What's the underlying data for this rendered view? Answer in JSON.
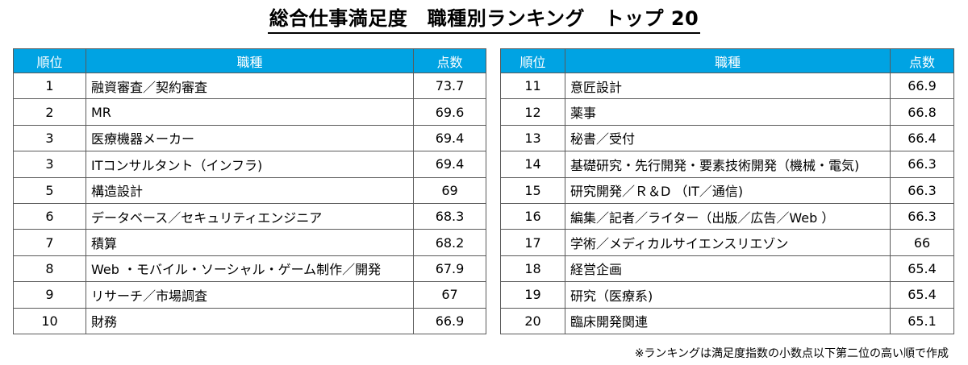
{
  "title": "総合仕事満足度　職種別ランキング　トップ 20",
  "headers": {
    "rank": "順位",
    "job": "職種",
    "score": "点数"
  },
  "left_rows": [
    {
      "rank": "1",
      "job": "融資審査／契約審査",
      "score": "73.7"
    },
    {
      "rank": "2",
      "job": "MR",
      "score": "69.6"
    },
    {
      "rank": "3",
      "job": "医療機器メーカー",
      "score": "69.4"
    },
    {
      "rank": "3",
      "job": "ITコンサルタント（インフラ)",
      "score": "69.4"
    },
    {
      "rank": "5",
      "job": "構造設計",
      "score": "69"
    },
    {
      "rank": "6",
      "job": "データベース／セキュリティエンジニア",
      "score": "68.3"
    },
    {
      "rank": "7",
      "job": "積算",
      "score": "68.2"
    },
    {
      "rank": "8",
      "job": "Web ・モバイル・ソーシャル・ゲーム制作／開発",
      "score": "67.9"
    },
    {
      "rank": "9",
      "job": "リサーチ／市場調査",
      "score": "67"
    },
    {
      "rank": "10",
      "job": "財務",
      "score": "66.9"
    }
  ],
  "right_rows": [
    {
      "rank": "11",
      "job": "意匠設計",
      "score": "66.9"
    },
    {
      "rank": "12",
      "job": "薬事",
      "score": "66.8"
    },
    {
      "rank": "13",
      "job": "秘書／受付",
      "score": "66.4"
    },
    {
      "rank": "14",
      "job": "基礎研究・先行開発・要素技術開発（機械・電気)",
      "score": "66.3"
    },
    {
      "rank": "15",
      "job": "研究開発／Ｒ＆D （IT／通信)",
      "score": "66.3"
    },
    {
      "rank": "16",
      "job": "編集／記者／ライター（出版／広告／Web ）",
      "score": "66.3"
    },
    {
      "rank": "17",
      "job": "学術／メディカルサイエンスリエゾン",
      "score": "66"
    },
    {
      "rank": "18",
      "job": "経営企画",
      "score": "65.4"
    },
    {
      "rank": "19",
      "job": "研究（医療系)",
      "score": "65.4"
    },
    {
      "rank": "20",
      "job": "臨床開発関連",
      "score": "65.1"
    }
  ],
  "note": "※ランキングは満足度指数の小数点以下第二位の高い順で作成",
  "colors": {
    "header_bg": "#00a3e3",
    "header_text": "#ffffff",
    "border": "#5a5a5a"
  }
}
